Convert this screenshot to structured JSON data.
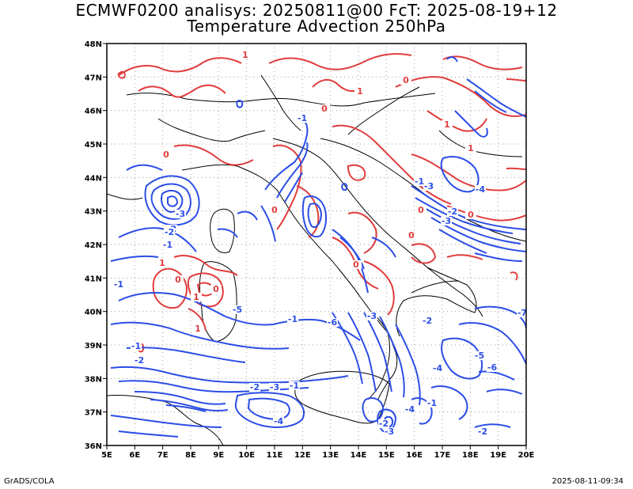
{
  "title_line1": "ECMWF0200 analisys: 20250811@00 FcT: 2025-08-19+12",
  "title_line2": "Temperature Advection 250hPa",
  "footer_left": "GrADS/COLA",
  "footer_right": "2025-08-11-09:34",
  "colors": {
    "positive": "#e03c3c",
    "negative": "#2b4de6",
    "coast": "#000000",
    "grid": "#a0a0a0"
  },
  "lon_ticks": [
    "5E",
    "6E",
    "7E",
    "8E",
    "9E",
    "10E",
    "11E",
    "12E",
    "13E",
    "14E",
    "15E",
    "16E",
    "17E",
    "18E",
    "19E",
    "20E"
  ],
  "lat_ticks": [
    "36N",
    "37N",
    "38N",
    "39N",
    "40N",
    "41N",
    "42N",
    "43N",
    "44N",
    "45N",
    "46N",
    "47N",
    "48N"
  ],
  "contour_labels": {
    "positive": [
      "1",
      "0",
      "0",
      "0",
      "1",
      "1",
      "1",
      "0",
      "0",
      "0",
      "0",
      "1",
      "0",
      "1",
      "0",
      "1",
      "0"
    ],
    "negative": [
      "-1",
      "-2",
      "-3",
      "-1",
      "-2",
      "-1",
      "-1",
      "-2",
      "-1",
      "-1",
      "-2",
      "-3",
      "-4",
      "-2",
      "-3",
      "-4",
      "-5",
      "-6",
      "-7",
      "-2",
      "-3",
      "-4",
      "-5",
      "-6",
      "-3",
      "-1",
      "-2",
      "-3",
      "-4",
      "-1",
      "-2"
    ]
  }
}
